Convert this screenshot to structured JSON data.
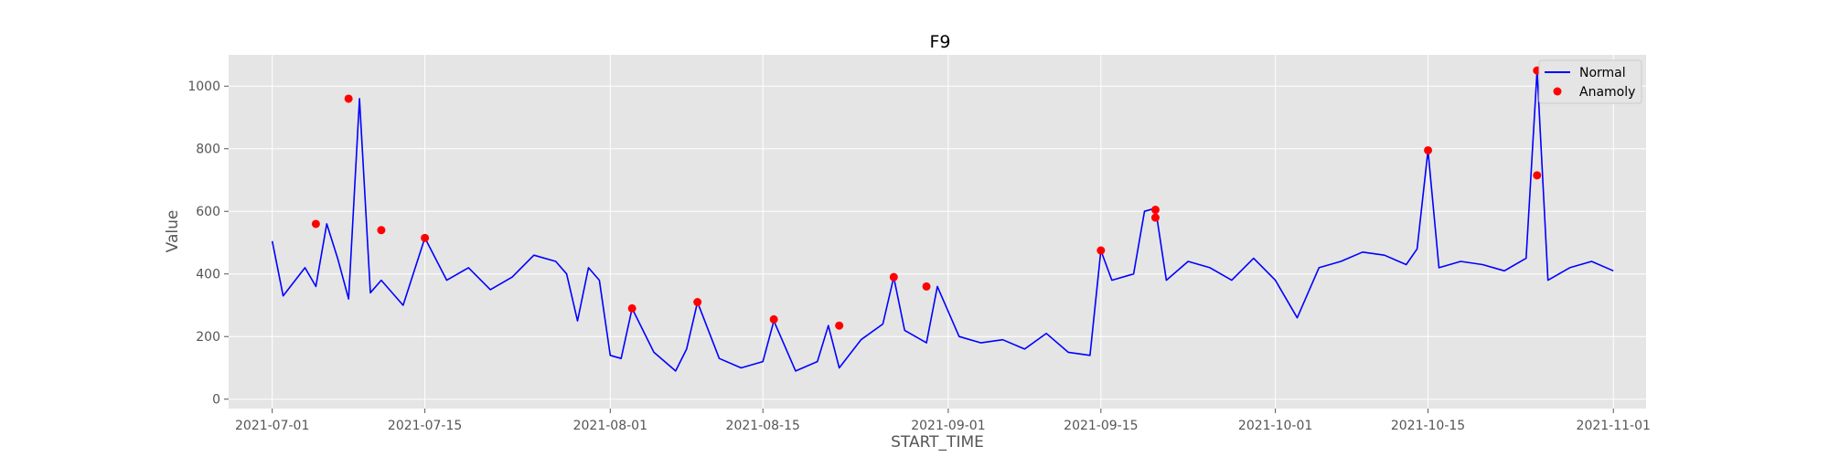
{
  "chart_data": {
    "type": "line",
    "title": "F9",
    "xlabel": "START_TIME",
    "ylabel": "Value",
    "x_range": [
      "2021-06-27",
      "2021-11-04"
    ],
    "ylim": [
      -30,
      1100
    ],
    "x_ticks": [
      "2021-07-01",
      "2021-07-15",
      "2021-08-01",
      "2021-08-15",
      "2021-09-01",
      "2021-09-15",
      "2021-10-01",
      "2021-10-15",
      "2021-11-01"
    ],
    "y_ticks": [
      0,
      200,
      400,
      600,
      800,
      1000
    ],
    "grid": true,
    "legend_position": "top-right",
    "colors": {
      "normal": "#0000ff",
      "anomaly": "#ff0000",
      "plot_background": "#e5e5e5",
      "grid": "#ffffff"
    },
    "series": [
      {
        "name": "Normal",
        "kind": "line",
        "x": [
          "2021-07-01",
          "2021-07-02",
          "2021-07-04",
          "2021-07-05",
          "2021-07-06",
          "2021-07-07",
          "2021-07-08",
          "2021-07-09",
          "2021-07-10",
          "2021-07-11",
          "2021-07-13",
          "2021-07-15",
          "2021-07-17",
          "2021-07-19",
          "2021-07-21",
          "2021-07-23",
          "2021-07-25",
          "2021-07-27",
          "2021-07-28",
          "2021-07-29",
          "2021-07-30",
          "2021-07-31",
          "2021-08-01",
          "2021-08-02",
          "2021-08-03",
          "2021-08-05",
          "2021-08-07",
          "2021-08-08",
          "2021-08-09",
          "2021-08-11",
          "2021-08-13",
          "2021-08-15",
          "2021-08-16",
          "2021-08-18",
          "2021-08-20",
          "2021-08-21",
          "2021-08-22",
          "2021-08-24",
          "2021-08-26",
          "2021-08-27",
          "2021-08-28",
          "2021-08-30",
          "2021-08-31",
          "2021-09-02",
          "2021-09-04",
          "2021-09-06",
          "2021-09-08",
          "2021-09-10",
          "2021-09-12",
          "2021-09-14",
          "2021-09-15",
          "2021-09-16",
          "2021-09-18",
          "2021-09-19",
          "2021-09-20",
          "2021-09-21",
          "2021-09-23",
          "2021-09-25",
          "2021-09-27",
          "2021-09-29",
          "2021-10-01",
          "2021-10-03",
          "2021-10-05",
          "2021-10-07",
          "2021-10-09",
          "2021-10-11",
          "2021-10-13",
          "2021-10-14",
          "2021-10-15",
          "2021-10-16",
          "2021-10-18",
          "2021-10-20",
          "2021-10-22",
          "2021-10-24",
          "2021-10-25",
          "2021-10-26",
          "2021-10-28",
          "2021-10-30",
          "2021-11-01"
        ],
        "y": [
          505,
          330,
          420,
          360,
          560,
          450,
          320,
          960,
          340,
          380,
          300,
          515,
          380,
          420,
          350,
          390,
          460,
          440,
          400,
          250,
          420,
          380,
          140,
          130,
          290,
          150,
          90,
          160,
          310,
          130,
          100,
          120,
          250,
          90,
          120,
          235,
          100,
          190,
          240,
          390,
          220,
          180,
          360,
          200,
          180,
          190,
          160,
          210,
          150,
          140,
          475,
          380,
          400,
          600,
          610,
          380,
          440,
          420,
          380,
          450,
          380,
          260,
          420,
          440,
          470,
          460,
          430,
          480,
          795,
          420,
          440,
          430,
          410,
          450,
          1050,
          380,
          420,
          440,
          410
        ]
      },
      {
        "name": "Anamoly",
        "kind": "scatter",
        "x": [
          "2021-07-05",
          "2021-07-08",
          "2021-07-11",
          "2021-07-15",
          "2021-08-03",
          "2021-08-09",
          "2021-08-16",
          "2021-08-22",
          "2021-08-27",
          "2021-08-30",
          "2021-09-15",
          "2021-09-20",
          "2021-09-20",
          "2021-10-15",
          "2021-10-25",
          "2021-10-25"
        ],
        "y": [
          560,
          960,
          540,
          515,
          290,
          310,
          255,
          235,
          390,
          360,
          475,
          580,
          605,
          795,
          715,
          1050
        ]
      }
    ]
  }
}
